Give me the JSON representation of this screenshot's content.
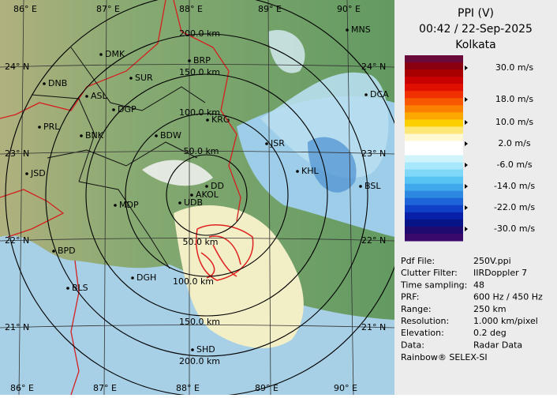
{
  "header": {
    "title": "PPI (V)",
    "time": "00:42 / 22-Sep-2025",
    "site": "Kolkata"
  },
  "color_scale": {
    "labels": [
      "30.0 m/s",
      "18.0 m/s",
      "10.0 m/s",
      "2.0 m/s",
      "-6.0 m/s",
      "-14.0 m/s",
      "-22.0 m/s",
      "-30.0 m/s"
    ]
  },
  "info": {
    "rows": [
      [
        "Pdf File:",
        "250V.ppi"
      ],
      [
        "Clutter Filter:",
        "IIRDoppler 7"
      ],
      [
        "Time sampling:",
        "48"
      ],
      [
        "PRF:",
        "600 Hz / 450 Hz"
      ],
      [
        "Range:",
        "250 km"
      ],
      [
        "Resolution:",
        "1.000 km/pixel"
      ],
      [
        "Elevation:",
        "0.2 deg"
      ],
      [
        "Data:",
        "Radar Data"
      ]
    ],
    "footer": "Rainbow® SELEX-SI"
  },
  "map": {
    "lat_labels": [
      "24° N",
      "23° N",
      "22° N",
      "21° N"
    ],
    "lon_labels": [
      "86° E",
      "87° E",
      "88° E",
      "89° E",
      "90° E"
    ],
    "range_labels": [
      "200.0 km",
      "150.0 km",
      "100.0 km",
      "50.0 km",
      "50.0 km",
      "100.0 km",
      "150.0 km",
      "200.0 km"
    ],
    "places": [
      "MNS",
      "DMK",
      "BRP",
      "DNB",
      "SUR",
      "ASL",
      "DGP",
      "DCA",
      "KRG",
      "PRL",
      "BNK",
      "BDW",
      "JSR",
      "KHL",
      "JSD",
      "BSL",
      "DD",
      "AKOL",
      "UDB",
      "MDP",
      "BPD",
      "DGH",
      "BLS",
      "SHD"
    ]
  }
}
